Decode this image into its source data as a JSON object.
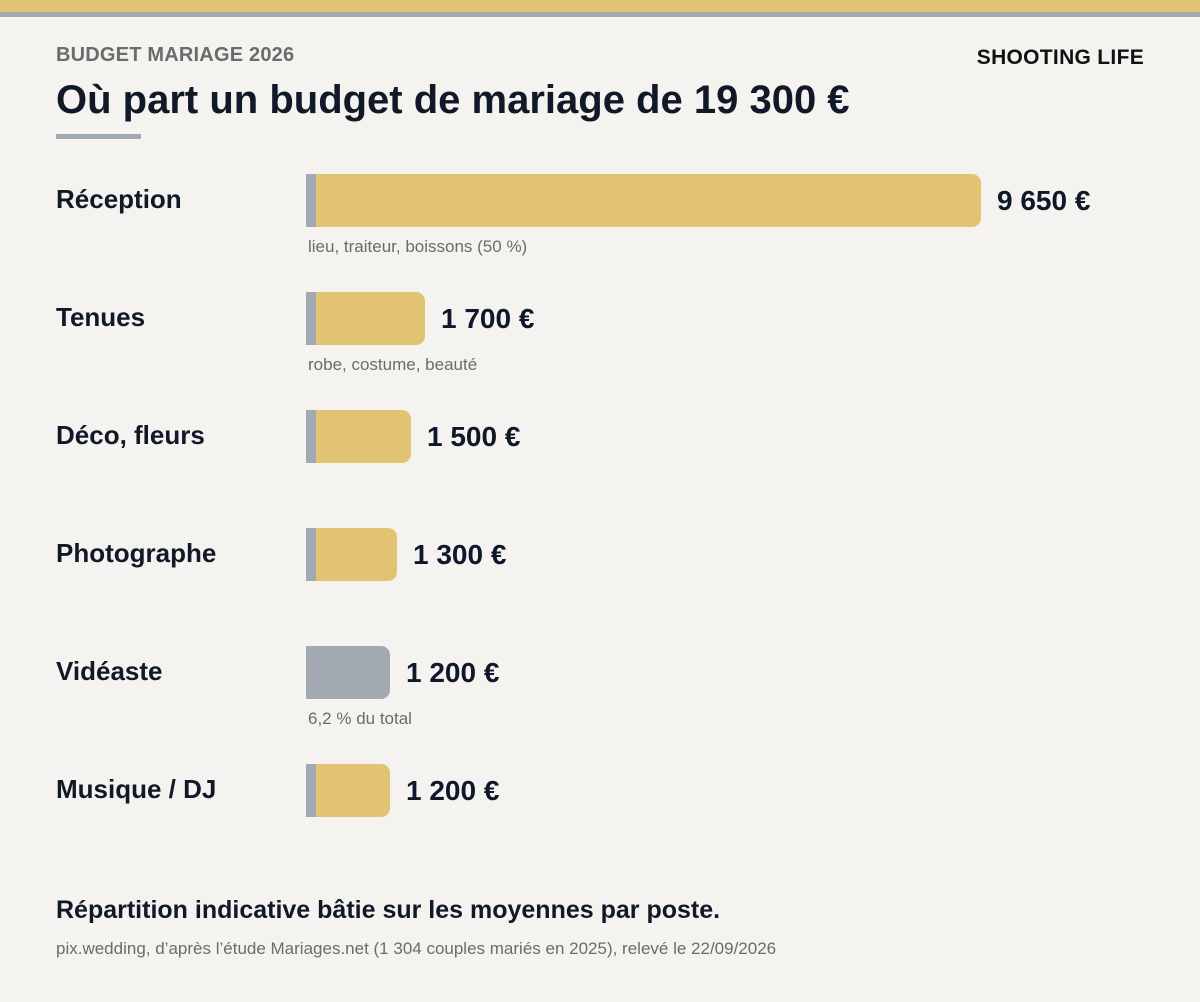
{
  "header": {
    "kicker": "BUDGET MARIAGE 2026",
    "brand": "SHOOTING LIFE",
    "title": "Où part un budget de mariage de 19 300 €"
  },
  "chart_data": {
    "type": "bar",
    "orientation": "horizontal",
    "title": "Où part un budget de mariage de 19 300 €",
    "unit": "€",
    "categories": [
      "Réception",
      "Tenues",
      "Déco, fleurs",
      "Photographe",
      "Vidéaste",
      "Musique / DJ"
    ],
    "values": [
      9650,
      1700,
      1500,
      1300,
      1200,
      1200
    ],
    "value_labels": [
      "9 650 €",
      "1 700 €",
      "1 500 €",
      "1 300 €",
      "1 200 €",
      "1 200 €"
    ],
    "notes": [
      "lieu, traiteur, boissons (50 %)",
      "robe, costume, beauté",
      "",
      "",
      "6,2 % du total",
      ""
    ],
    "highlighted": [
      false,
      false,
      false,
      false,
      true,
      false
    ],
    "xlim": [
      0,
      9650
    ],
    "grid": false,
    "colors": {
      "bar": "#e1c372",
      "highlight": "#a3a9b3",
      "cap": "#a3a9b3"
    }
  },
  "footer": {
    "note": "Répartition indicative bâtie sur les moyennes par poste.",
    "source": "pix.wedding, d’après l’étude Mariages.net (1 304 couples mariés en 2025), relevé le 22/09/2026"
  },
  "colors": {
    "background": "#f4f3ef",
    "accent_gold": "#e1c372",
    "accent_grey": "#a3a9b3",
    "text_dark": "#111827",
    "text_muted": "#6b6b6b"
  }
}
